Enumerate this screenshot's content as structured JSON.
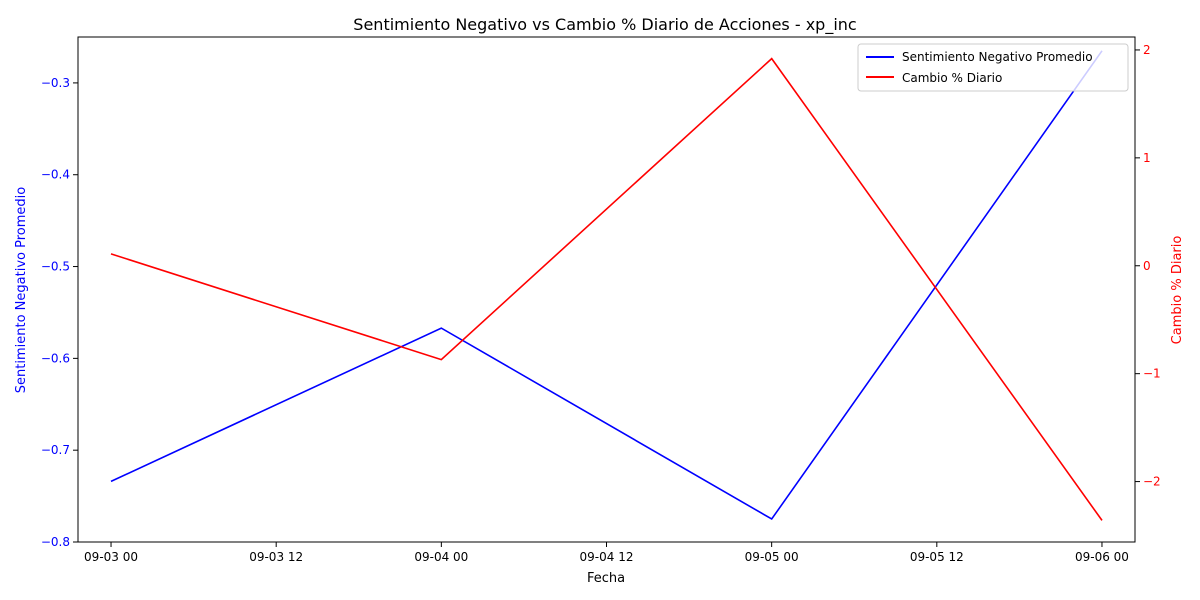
{
  "chart_data": {
    "type": "line",
    "title": "Sentimiento Negativo vs Cambio % Diario de Acciones - xp_inc",
    "xlabel": "Fecha",
    "x_ticks": [
      "09-03 00",
      "09-03 12",
      "09-04 00",
      "09-04 12",
      "09-05 00",
      "09-05 12",
      "09-06 00"
    ],
    "x": [
      "2024-09-03 00:00",
      "2024-09-04 00:00",
      "2024-09-05 00:00",
      "2024-09-06 00:00"
    ],
    "xlim": [
      "2024-09-02 21:36",
      "2024-09-06 02:24"
    ],
    "y_left": {
      "label": "Sentimiento Negativo Promedio",
      "color": "#0000ff",
      "ylim": [
        -0.8,
        -0.25
      ],
      "ticks": [
        -0.8,
        -0.7,
        -0.6,
        -0.5,
        -0.4,
        -0.3
      ],
      "tick_labels": [
        "−0.8",
        "−0.7",
        "−0.6",
        "−0.5",
        "−0.4",
        "−0.3"
      ]
    },
    "y_right": {
      "label": "Cambio % Diario",
      "color": "#ff0000",
      "ylim": [
        -2.56,
        2.12
      ],
      "ticks": [
        -2,
        -1,
        0,
        1,
        2
      ],
      "tick_labels": [
        "−2",
        "−1",
        "0",
        "1",
        "2"
      ]
    },
    "series": [
      {
        "name": "Sentimiento Negativo Promedio",
        "axis": "left",
        "color": "#0000ff",
        "values": [
          -0.734,
          -0.567,
          -0.775,
          -0.265
        ]
      },
      {
        "name": "Cambio % Diario",
        "axis": "right",
        "color": "#ff0000",
        "values": [
          0.11,
          -0.87,
          1.92,
          -2.36
        ]
      }
    ],
    "legend": {
      "placement": "top-right"
    },
    "grid": false
  }
}
